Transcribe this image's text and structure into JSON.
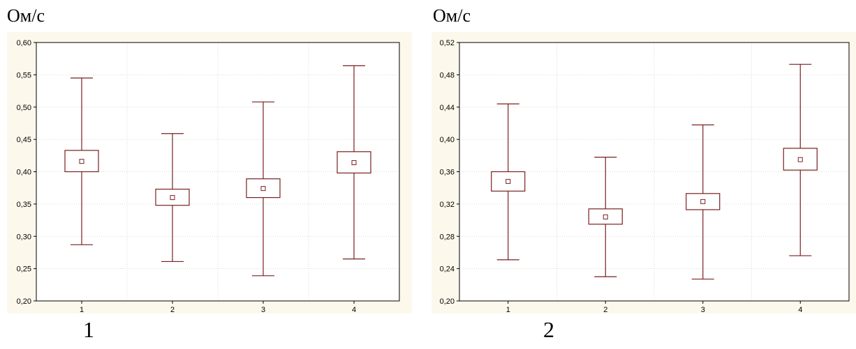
{
  "chart_data": [
    {
      "type": "box",
      "unit_label": "Ом/с",
      "panel_number": "1",
      "categories": [
        "1",
        "2",
        "3",
        "4"
      ],
      "ylim": [
        0.2,
        0.6
      ],
      "yticks": [
        "0,20",
        "0,25",
        "0,30",
        "0,35",
        "0,40",
        "0,45",
        "0,50",
        "0,55",
        "0,60"
      ],
      "ytick_values": [
        0.2,
        0.25,
        0.3,
        0.35,
        0.4,
        0.45,
        0.5,
        0.55,
        0.6
      ],
      "grid": true,
      "series": [
        {
          "values": [
            {
              "whisker_low": 0.287,
              "box_low": 0.4,
              "mean": 0.416,
              "box_high": 0.433,
              "whisker_high": 0.545
            },
            {
              "whisker_low": 0.261,
              "box_low": 0.348,
              "mean": 0.36,
              "box_high": 0.373,
              "whisker_high": 0.459
            },
            {
              "whisker_low": 0.239,
              "box_low": 0.36,
              "mean": 0.374,
              "box_high": 0.389,
              "whisker_high": 0.508
            },
            {
              "whisker_low": 0.265,
              "box_low": 0.398,
              "mean": 0.414,
              "box_high": 0.431,
              "whisker_high": 0.564
            }
          ]
        }
      ]
    },
    {
      "type": "box",
      "unit_label": "Ом/с",
      "panel_number": "2",
      "categories": [
        "1",
        "2",
        "3",
        "4"
      ],
      "ylim": [
        0.2,
        0.52
      ],
      "yticks": [
        "0,20",
        "0,24",
        "0,28",
        "0,32",
        "0,36",
        "0,40",
        "0,44",
        "0,48",
        "0,52"
      ],
      "ytick_values": [
        0.2,
        0.24,
        0.28,
        0.32,
        0.36,
        0.4,
        0.44,
        0.48,
        0.52
      ],
      "grid": true,
      "series": [
        {
          "values": [
            {
              "whisker_low": 0.251,
              "box_low": 0.336,
              "mean": 0.348,
              "box_high": 0.36,
              "whisker_high": 0.444
            },
            {
              "whisker_low": 0.23,
              "box_low": 0.295,
              "mean": 0.304,
              "box_high": 0.314,
              "whisker_high": 0.378
            },
            {
              "whisker_low": 0.227,
              "box_low": 0.313,
              "mean": 0.323,
              "box_high": 0.333,
              "whisker_high": 0.418
            },
            {
              "whisker_low": 0.256,
              "box_low": 0.362,
              "mean": 0.375,
              "box_high": 0.389,
              "whisker_high": 0.493
            }
          ]
        }
      ]
    }
  ],
  "colors": {
    "stroke": "#7a1f1f",
    "plot_bg": "#fdf8ec",
    "grid": "#d9d9d9",
    "axis": "#000000"
  }
}
